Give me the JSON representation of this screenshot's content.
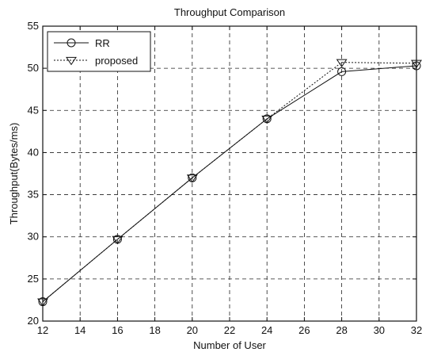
{
  "chart_data": {
    "type": "line",
    "title": "Throughput Comparison",
    "xlabel": "Number of User",
    "ylabel": "Throughput(Bytes/ms)",
    "xlim": [
      12,
      32
    ],
    "ylim": [
      20,
      55
    ],
    "xticks": [
      12,
      14,
      16,
      18,
      20,
      22,
      24,
      26,
      28,
      30,
      32
    ],
    "yticks": [
      20,
      25,
      30,
      35,
      40,
      45,
      50,
      55
    ],
    "grid": true,
    "legend_position": "top-left",
    "x": [
      12,
      16,
      20,
      24,
      28,
      32
    ],
    "series": [
      {
        "name": "RR",
        "values": [
          22.3,
          29.7,
          37.0,
          44.0,
          49.6,
          50.3
        ],
        "marker": "circle",
        "line_style": "solid",
        "color": "#111111"
      },
      {
        "name": "proposed",
        "values": [
          22.3,
          29.7,
          37.0,
          44.0,
          50.7,
          50.6
        ],
        "marker": "triangle-down",
        "line_style": "dotted",
        "color": "#111111"
      }
    ]
  }
}
